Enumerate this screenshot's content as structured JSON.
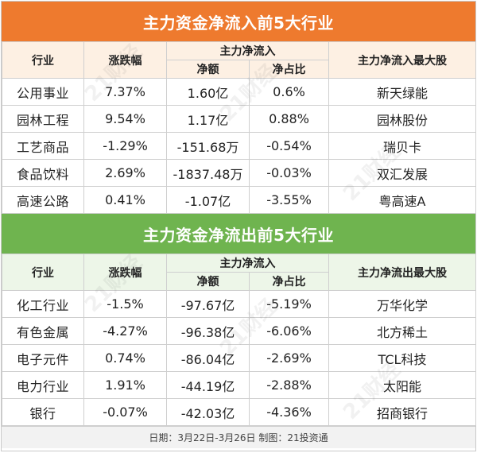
{
  "inflow": {
    "title": "主力资金净流入前5大行业",
    "headers": {
      "industry": "行业",
      "change": "涨跌幅",
      "main_flow": "主力净流入",
      "net_amount": "净额",
      "net_ratio": "净占比",
      "top_stock": "主力净流入最大股"
    },
    "rows": [
      {
        "industry": "公用事业",
        "change": "7.37%",
        "net_amount": "1.60亿",
        "net_ratio": "0.6%",
        "top_stock": "新天绿能"
      },
      {
        "industry": "园林工程",
        "change": "9.54%",
        "net_amount": "1.17亿",
        "net_ratio": "0.88%",
        "top_stock": "园林股份"
      },
      {
        "industry": "工艺商品",
        "change": "-1.29%",
        "net_amount": "-151.68万",
        "net_ratio": "-0.54%",
        "top_stock": "瑞贝卡"
      },
      {
        "industry": "食品饮料",
        "change": "2.69%",
        "net_amount": "-1837.48万",
        "net_ratio": "-0.03%",
        "top_stock": "双汇发展"
      },
      {
        "industry": "高速公路",
        "change": "0.41%",
        "net_amount": "-1.07亿",
        "net_ratio": "-3.55%",
        "top_stock": "粤高速A"
      }
    ]
  },
  "outflow": {
    "title": "主力资金净流出前5大行业",
    "headers": {
      "industry": "行业",
      "change": "涨跌幅",
      "main_flow": "主力净流入",
      "net_amount": "净额",
      "net_ratio": "净占比",
      "top_stock": "主力净流出最大股"
    },
    "rows": [
      {
        "industry": "化工行业",
        "change": "-1.5%",
        "net_amount": "-97.67亿",
        "net_ratio": "-5.19%",
        "top_stock": "万华化学"
      },
      {
        "industry": "有色金属",
        "change": "-4.27%",
        "net_amount": "-96.38亿",
        "net_ratio": "-6.06%",
        "top_stock": "北方稀土"
      },
      {
        "industry": "电子元件",
        "change": "0.74%",
        "net_amount": "-86.04亿",
        "net_ratio": "-2.69%",
        "top_stock": "TCL科技"
      },
      {
        "industry": "电力行业",
        "change": "1.91%",
        "net_amount": "-44.19亿",
        "net_ratio": "-2.88%",
        "top_stock": "太阳能"
      },
      {
        "industry": "银行",
        "change": "-0.07%",
        "net_amount": "-42.03亿",
        "net_ratio": "-4.36%",
        "top_stock": "招商银行"
      }
    ]
  },
  "footer": "日期：3月22日-3月26日 制图：21投资通",
  "watermark": "21财经",
  "colors": {
    "orange": "#ee7a2e",
    "green": "#6fb44f"
  }
}
